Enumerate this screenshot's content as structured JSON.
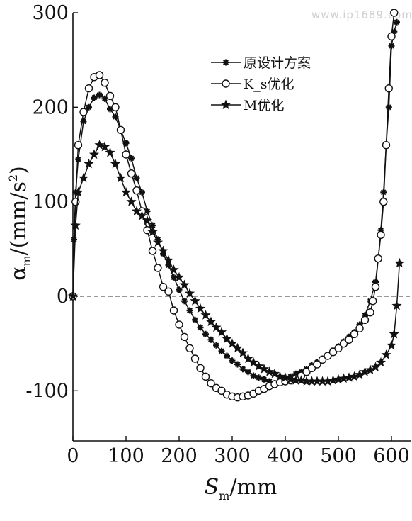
{
  "watermark": "www.ip1689.com",
  "chart_data": {
    "type": "line",
    "x_label": "S_m/mm",
    "y_label": "α_m/(mm/s²)",
    "xlim": [
      0,
      620
    ],
    "ylim": [
      -150,
      300
    ],
    "x_ticks": [
      0,
      100,
      200,
      300,
      400,
      500,
      600
    ],
    "y_ticks": [
      -100,
      0,
      100,
      200,
      300
    ],
    "x_tick_labels": [
      "0",
      "100",
      "200",
      "300",
      "400",
      "500",
      "600"
    ],
    "y_tick_labels": [
      "-100",
      "0",
      "100",
      "200",
      "300"
    ],
    "zero_line": "dashed",
    "legend": {
      "position": "top-right"
    },
    "series": [
      {
        "name": "原设计方案",
        "marker": "asterisk",
        "x": [
          0,
          2,
          5,
          10,
          20,
          30,
          40,
          50,
          60,
          70,
          80,
          90,
          100,
          110,
          120,
          130,
          140,
          150,
          160,
          170,
          180,
          190,
          200,
          210,
          220,
          230,
          240,
          250,
          260,
          270,
          280,
          290,
          300,
          310,
          320,
          330,
          340,
          350,
          360,
          370,
          380,
          390,
          400,
          410,
          420,
          430,
          440,
          450,
          460,
          470,
          480,
          490,
          500,
          510,
          520,
          530,
          540,
          550,
          560,
          570,
          575,
          580,
          585,
          590,
          595,
          600,
          605,
          610
        ],
        "y": [
          0,
          60,
          110,
          145,
          185,
          200,
          210,
          213,
          209,
          198,
          190,
          176,
          162,
          146,
          125,
          110,
          90,
          75,
          60,
          45,
          33,
          20,
          7,
          -5,
          -15,
          -25,
          -33,
          -40,
          -46,
          -52,
          -58,
          -63,
          -68,
          -72,
          -77,
          -80,
          -84,
          -86,
          -88,
          -90,
          -92,
          -90,
          -87,
          -85,
          -82,
          -80,
          -77,
          -73,
          -70,
          -66,
          -62,
          -57,
          -53,
          -48,
          -43,
          -38,
          -30,
          -20,
          -5,
          15,
          40,
          70,
          110,
          160,
          200,
          265,
          280,
          290
        ]
      },
      {
        "name": "K_s优化",
        "marker": "circle",
        "x": [
          0,
          5,
          10,
          20,
          30,
          40,
          50,
          60,
          70,
          80,
          90,
          100,
          110,
          120,
          130,
          140,
          150,
          160,
          170,
          180,
          190,
          200,
          210,
          220,
          230,
          240,
          250,
          260,
          270,
          280,
          290,
          300,
          310,
          320,
          330,
          340,
          350,
          360,
          370,
          380,
          390,
          400,
          410,
          420,
          430,
          440,
          450,
          460,
          470,
          480,
          490,
          500,
          510,
          520,
          530,
          540,
          550,
          560,
          565,
          570,
          575,
          580,
          585,
          590,
          595,
          600,
          605
        ],
        "y": [
          0,
          100,
          160,
          195,
          220,
          232,
          234,
          226,
          212,
          200,
          176,
          150,
          130,
          112,
          90,
          70,
          48,
          30,
          10,
          5,
          -15,
          -30,
          -43,
          -55,
          -66,
          -76,
          -85,
          -92,
          -97,
          -100,
          -104,
          -106,
          -107,
          -106,
          -105,
          -103,
          -100,
          -98,
          -95,
          -93,
          -91,
          -90,
          -89,
          -87,
          -84,
          -80,
          -76,
          -72,
          -67,
          -63,
          -59,
          -55,
          -50,
          -46,
          -40,
          -34,
          -25,
          -17,
          -5,
          10,
          40,
          65,
          100,
          160,
          220,
          275,
          300
        ]
      },
      {
        "name": "M优化",
        "marker": "star",
        "x": [
          0,
          5,
          10,
          20,
          30,
          40,
          50,
          60,
          70,
          80,
          90,
          100,
          110,
          120,
          130,
          140,
          150,
          160,
          170,
          180,
          190,
          200,
          210,
          220,
          230,
          240,
          250,
          260,
          270,
          280,
          290,
          300,
          310,
          320,
          330,
          340,
          350,
          360,
          370,
          380,
          390,
          400,
          410,
          420,
          430,
          440,
          450,
          460,
          470,
          480,
          490,
          500,
          510,
          520,
          530,
          540,
          550,
          560,
          570,
          580,
          590,
          600,
          605,
          610,
          615
        ],
        "y": [
          0,
          75,
          110,
          125,
          140,
          150,
          160,
          158,
          152,
          140,
          125,
          110,
          100,
          90,
          85,
          80,
          68,
          57,
          48,
          38,
          28,
          20,
          12,
          3,
          -5,
          -13,
          -20,
          -27,
          -33,
          -38,
          -45,
          -50,
          -55,
          -60,
          -66,
          -70,
          -74,
          -77,
          -80,
          -82,
          -85,
          -86,
          -88,
          -89,
          -89,
          -90,
          -90,
          -90,
          -90,
          -90,
          -89,
          -88,
          -87,
          -86,
          -85,
          -83,
          -80,
          -78,
          -75,
          -70,
          -62,
          -52,
          -40,
          -10,
          35
        ]
      }
    ]
  }
}
